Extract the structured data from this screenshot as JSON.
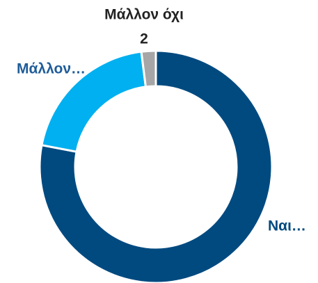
{
  "chart_data": {
    "type": "donut",
    "categories": [
      "Ναι…",
      "Μάλλον…",
      "Μάλλον όχι"
    ],
    "values": [
      78,
      20,
      2
    ],
    "value_labels": [
      null,
      null,
      "2"
    ],
    "colors": [
      "#004a80",
      "#00b0f0",
      "#a6a6a6"
    ]
  }
}
